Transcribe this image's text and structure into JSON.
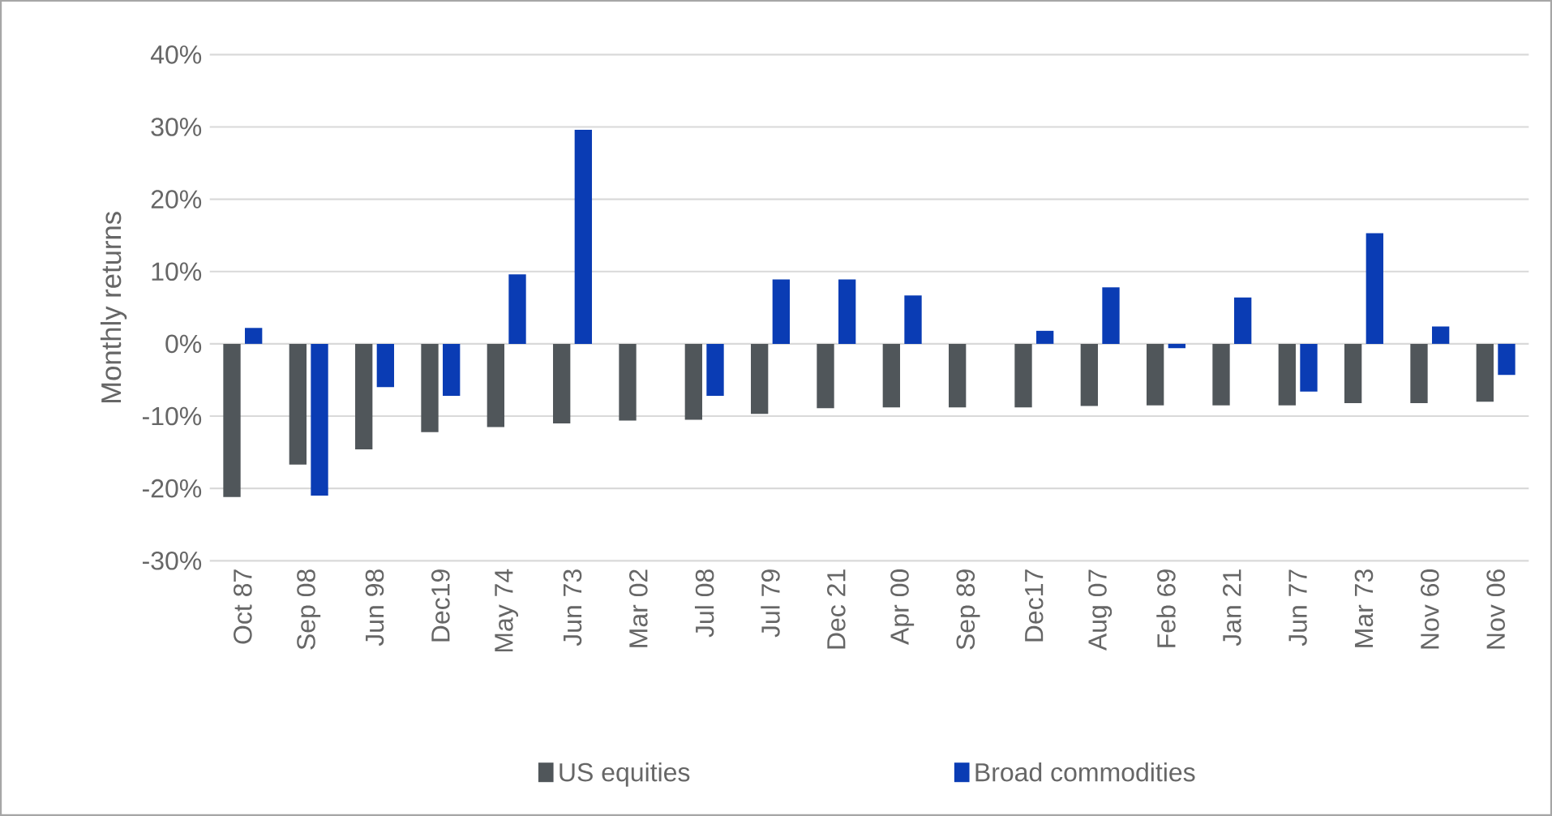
{
  "chart_data": {
    "type": "bar",
    "ylabel": "Monthly returns",
    "categories": [
      "Oct 87",
      "Sep 08",
      "Jun 98",
      "Dec19",
      "May 74",
      "Jun 73",
      "Mar 02",
      "Jul 08",
      "Jul 79",
      "Dec 21",
      "Apr 00",
      "Sep 89",
      "Dec17",
      "Aug 07",
      "Feb 69",
      "Jan 21",
      "Jun 77",
      "Mar 73",
      "Nov 60",
      "Nov 06"
    ],
    "series": [
      {
        "name": "US equities",
        "color": "#50565a",
        "values": [
          -21.2,
          -16.7,
          -14.6,
          -12.2,
          -11.5,
          -11.0,
          -10.6,
          -10.5,
          -9.7,
          -8.9,
          -8.8,
          -8.8,
          -8.8,
          -8.6,
          -8.5,
          -8.5,
          -8.5,
          -8.2,
          -8.2,
          -8.0
        ]
      },
      {
        "name": "Broad commodities",
        "color": "#0a3cb4",
        "values": [
          2.2,
          -21.0,
          -6.0,
          -7.2,
          9.6,
          29.6,
          null,
          -7.2,
          8.9,
          8.9,
          6.7,
          null,
          1.8,
          7.8,
          -0.6,
          6.4,
          -6.6,
          15.3,
          2.4,
          -4.3
        ]
      }
    ],
    "ylim": [
      -30,
      40
    ],
    "yticks": [
      {
        "value": -30,
        "label": "-30%"
      },
      {
        "value": -20,
        "label": "-20%"
      },
      {
        "value": -10,
        "label": "-10%"
      },
      {
        "value": 0,
        "label": "0%"
      },
      {
        "value": 10,
        "label": "10%"
      },
      {
        "value": 20,
        "label": "20%"
      },
      {
        "value": 30,
        "label": "30%"
      },
      {
        "value": 40,
        "label": "40%"
      }
    ],
    "grid": "y",
    "legend": "bottom"
  }
}
